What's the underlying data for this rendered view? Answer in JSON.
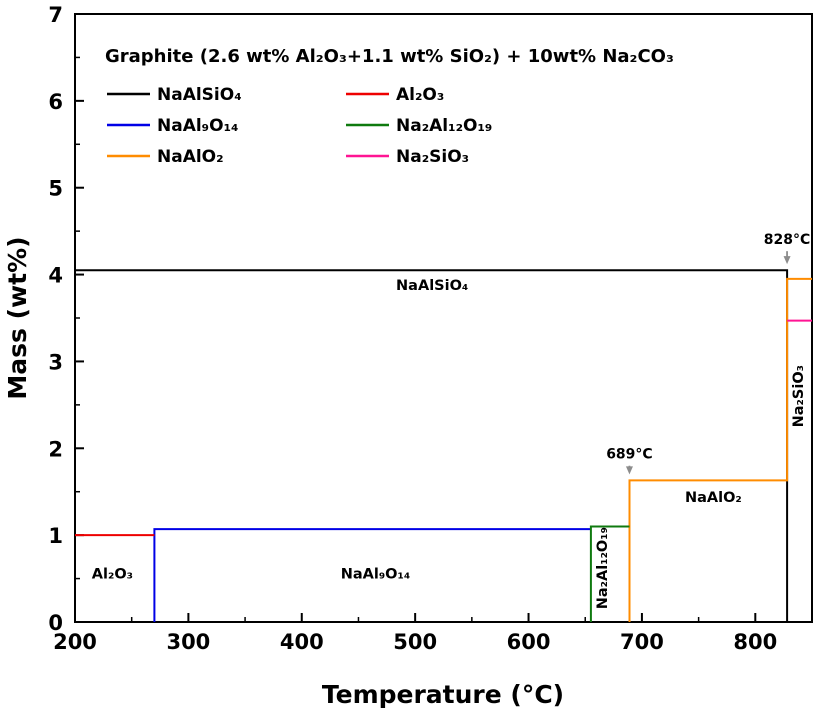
{
  "chart_data": {
    "type": "line",
    "title": "Graphite (2.6 wt% Al₂O₃+1.1 wt% SiO₂) + 10wt% Na₂CO₃",
    "xlabel": "Temperature (°C)",
    "ylabel": "Mass (wt%)",
    "xlim": [
      200,
      850
    ],
    "ylim": [
      0,
      7
    ],
    "x_ticks": [
      200,
      300,
      400,
      500,
      600,
      700,
      800
    ],
    "x_minor": [
      250,
      350,
      450,
      550,
      650,
      750
    ],
    "y_ticks": [
      0,
      1,
      2,
      3,
      4,
      5,
      6,
      7
    ],
    "y_minor": [
      0.5,
      1.5,
      2.5,
      3.5,
      4.5,
      5.5,
      6.5
    ],
    "grid": false,
    "legend_position": "top-left-inside",
    "arrow_color": "#8c8c8c",
    "series": [
      {
        "name": "NaAlSiO₄",
        "color": "#000000",
        "points": [
          [
            200,
            4.05
          ],
          [
            828,
            4.05
          ],
          [
            828,
            0
          ]
        ]
      },
      {
        "name": "NaAl₉O₁₄",
        "color": "#0000e6",
        "points": [
          [
            270,
            0
          ],
          [
            270,
            1.07
          ],
          [
            655,
            1.07
          ]
        ]
      },
      {
        "name": "NaAlO₂",
        "color": "#ff8c00",
        "points": [
          [
            689,
            0
          ],
          [
            689,
            1.63
          ],
          [
            828,
            1.63
          ],
          [
            828,
            3.95
          ],
          [
            850,
            3.95
          ]
        ]
      },
      {
        "name": "Al₂O₃",
        "color": "#ee0000",
        "points": [
          [
            200,
            1.0
          ],
          [
            270,
            1.0
          ]
        ]
      },
      {
        "name": "Na₂Al₁₂O₁₉",
        "color": "#0f7a0f",
        "points": [
          [
            655,
            0
          ],
          [
            655,
            1.1
          ],
          [
            689,
            1.1
          ]
        ]
      },
      {
        "name": "Na₂SiO₃",
        "color": "#ff1493",
        "points": [
          [
            828,
            3.47
          ],
          [
            850,
            3.47
          ]
        ]
      }
    ],
    "legend_columns": [
      [
        "NaAlSiO₄",
        "NaAl₉O₁₄",
        "NaAlO₂"
      ],
      [
        "Al₂O₃",
        "Na₂Al₁₂O₁₉",
        "Na₂SiO₃"
      ]
    ],
    "annotations": [
      {
        "text": "828°C",
        "x": 828,
        "y": 4.35,
        "arrow_to_y": 4.12
      },
      {
        "text": "689°C",
        "x": 689,
        "y": 1.88,
        "arrow_to_y": 1.7
      }
    ],
    "region_labels": [
      {
        "text": "NaAlSiO₄",
        "x": 515,
        "y": 3.82,
        "rotate": 0
      },
      {
        "text": "Al₂O₃",
        "x": 233,
        "y": 0.5,
        "rotate": 0
      },
      {
        "text": "NaAl₉O₁₄",
        "x": 465,
        "y": 0.5,
        "rotate": 0
      },
      {
        "text": "Na₂Al₁₂O₁₉",
        "x": 669,
        "y": 0.62,
        "rotate": -90
      },
      {
        "text": "NaAlO₂",
        "x": 763,
        "y": 1.38,
        "rotate": 0
      },
      {
        "text": "Na₂SiO₃",
        "x": 842,
        "y": 2.6,
        "rotate": -90
      }
    ]
  }
}
